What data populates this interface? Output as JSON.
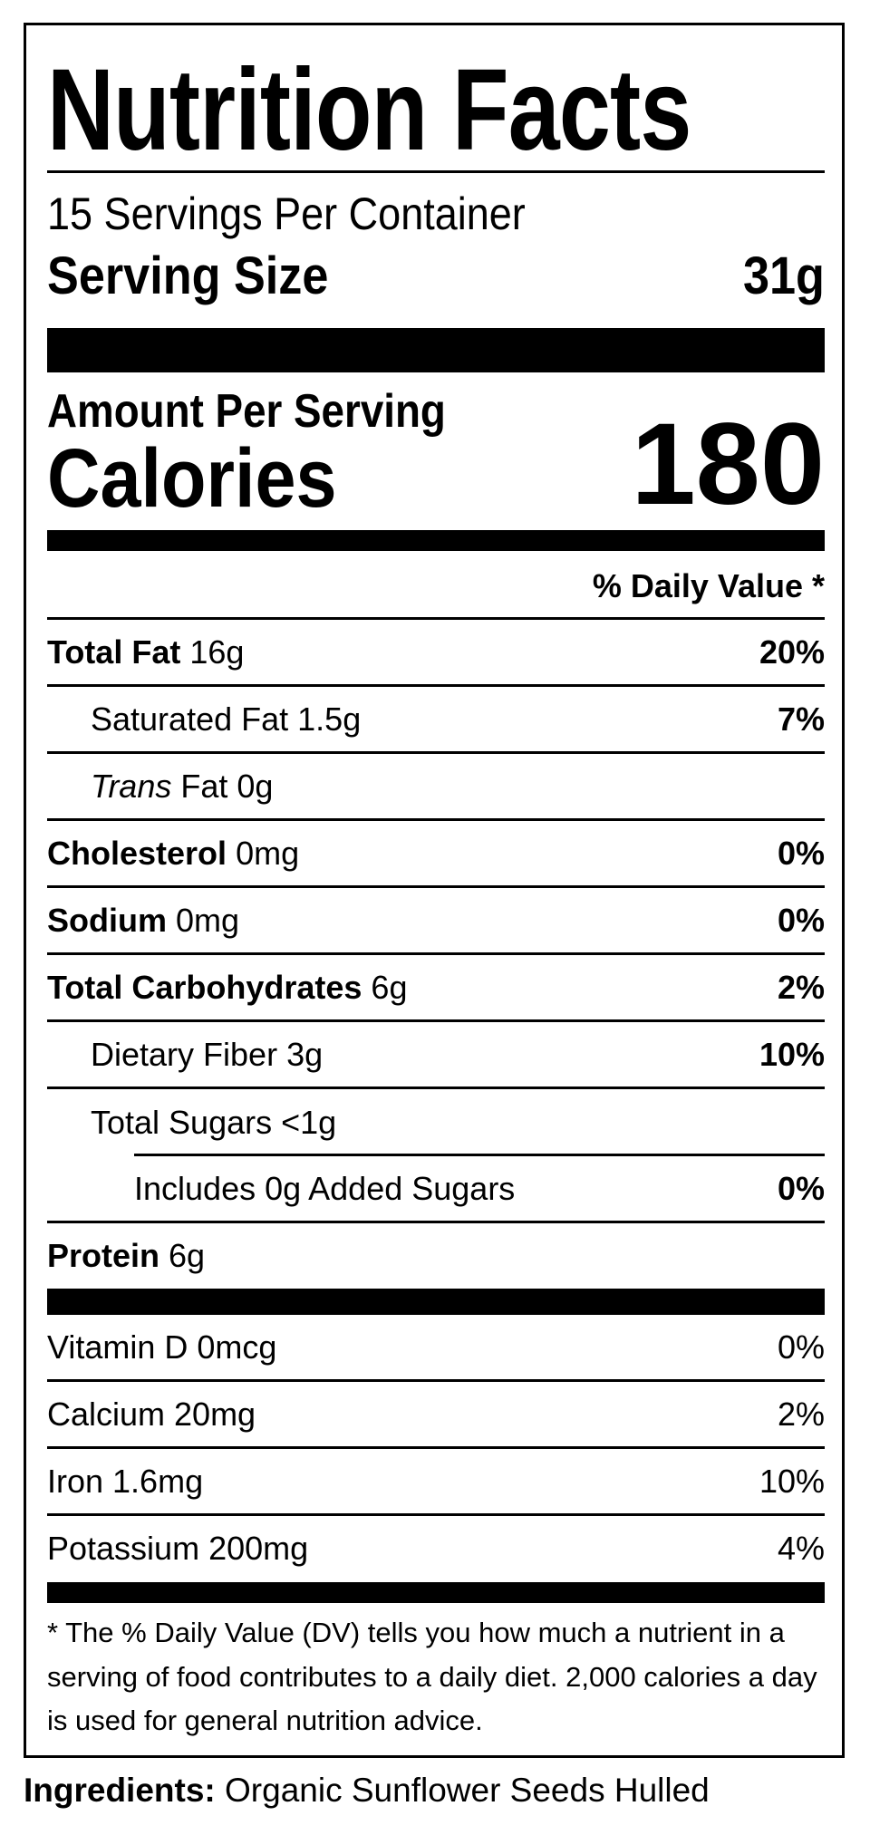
{
  "title": "Nutrition Facts",
  "servings_per_container": "15 Servings Per Container",
  "serving_size": {
    "label": "Serving Size",
    "value": "31g"
  },
  "amount_per_serving": "Amount Per Serving",
  "calories": {
    "label": "Calories",
    "value": "180"
  },
  "daily_value_header": "% Daily Value *",
  "nutrients": [
    {
      "name": "Total Fat",
      "amount": "16g",
      "dv": "20%"
    },
    {
      "name": "Saturated Fat",
      "amount": "1.5g",
      "dv": "7%"
    },
    {
      "name": "Trans",
      "suffix": "Fat 0g",
      "dv": ""
    },
    {
      "name": "Cholesterol",
      "amount": "0mg",
      "dv": "0%"
    },
    {
      "name": "Sodium",
      "amount": "0mg",
      "dv": "0%"
    },
    {
      "name": "Total Carbohydrates",
      "amount": "6g",
      "dv": "2%"
    },
    {
      "name": "Dietary Fiber",
      "amount": "3g",
      "dv": "10%"
    },
    {
      "name": "Total Sugars",
      "amount": "<1g",
      "dv": ""
    },
    {
      "name": "Includes 0g Added Sugars",
      "amount": "",
      "dv": "0%"
    },
    {
      "name": "Protein",
      "amount": "6g",
      "dv": ""
    }
  ],
  "vitamins": [
    {
      "label": "Vitamin D 0mcg",
      "dv": "0%"
    },
    {
      "label": "Calcium 20mg",
      "dv": "2%"
    },
    {
      "label": "Iron 1.6mg",
      "dv": "10%"
    },
    {
      "label": "Potassium 200mg",
      "dv": "4%"
    }
  ],
  "footnote": "* The % Daily Value (DV) tells you how much a nutrient in a serving of food contributes to a daily diet. 2,000 calories a day is used for general nutrition advice.",
  "ingredients": {
    "label": "Ingredients:",
    "value": "Organic Sunflower Seeds Hulled"
  }
}
